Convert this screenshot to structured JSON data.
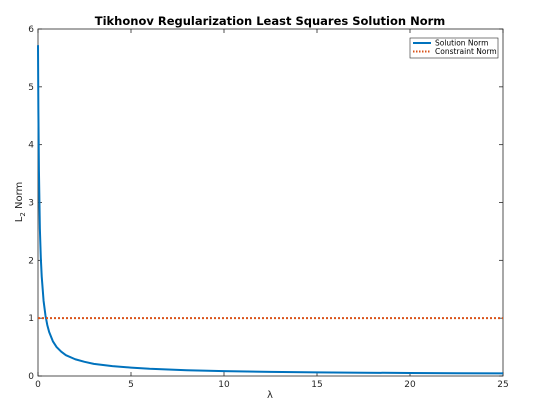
{
  "chart_data": {
    "type": "line",
    "title": "Tikhonov Regularization Least Squares Solution Norm",
    "xlabel": "λ",
    "ylabel": {
      "main": "L",
      "sub": "2",
      "rest": " Norm"
    },
    "xlim": [
      0,
      25
    ],
    "ylim": [
      0,
      6
    ],
    "xticks": [
      0,
      5,
      10,
      15,
      20,
      25
    ],
    "yticks": [
      0,
      1,
      2,
      3,
      4,
      5,
      6
    ],
    "grid": false,
    "legend_position": "top-right",
    "series": [
      {
        "name": "Solution Norm",
        "style": "solid",
        "color": "#0072BD",
        "x": [
          0,
          0.02,
          0.05,
          0.1,
          0.15,
          0.2,
          0.3,
          0.4,
          0.5,
          0.6,
          0.8,
          1.0,
          1.25,
          1.5,
          2,
          2.5,
          3,
          4,
          5,
          6,
          8,
          10,
          12.5,
          15,
          17.5,
          20,
          22.5,
          25
        ],
        "y": [
          5.72,
          4.6,
          3.55,
          2.55,
          2.05,
          1.72,
          1.3,
          1.05,
          0.88,
          0.76,
          0.6,
          0.5,
          0.42,
          0.36,
          0.29,
          0.245,
          0.21,
          0.17,
          0.145,
          0.125,
          0.1,
          0.085,
          0.072,
          0.063,
          0.057,
          0.052,
          0.048,
          0.045
        ]
      },
      {
        "name": "Constraint Norm",
        "style": "dotted",
        "color": "#D95319",
        "x": [
          0,
          25
        ],
        "y": [
          1,
          1
        ]
      }
    ]
  }
}
